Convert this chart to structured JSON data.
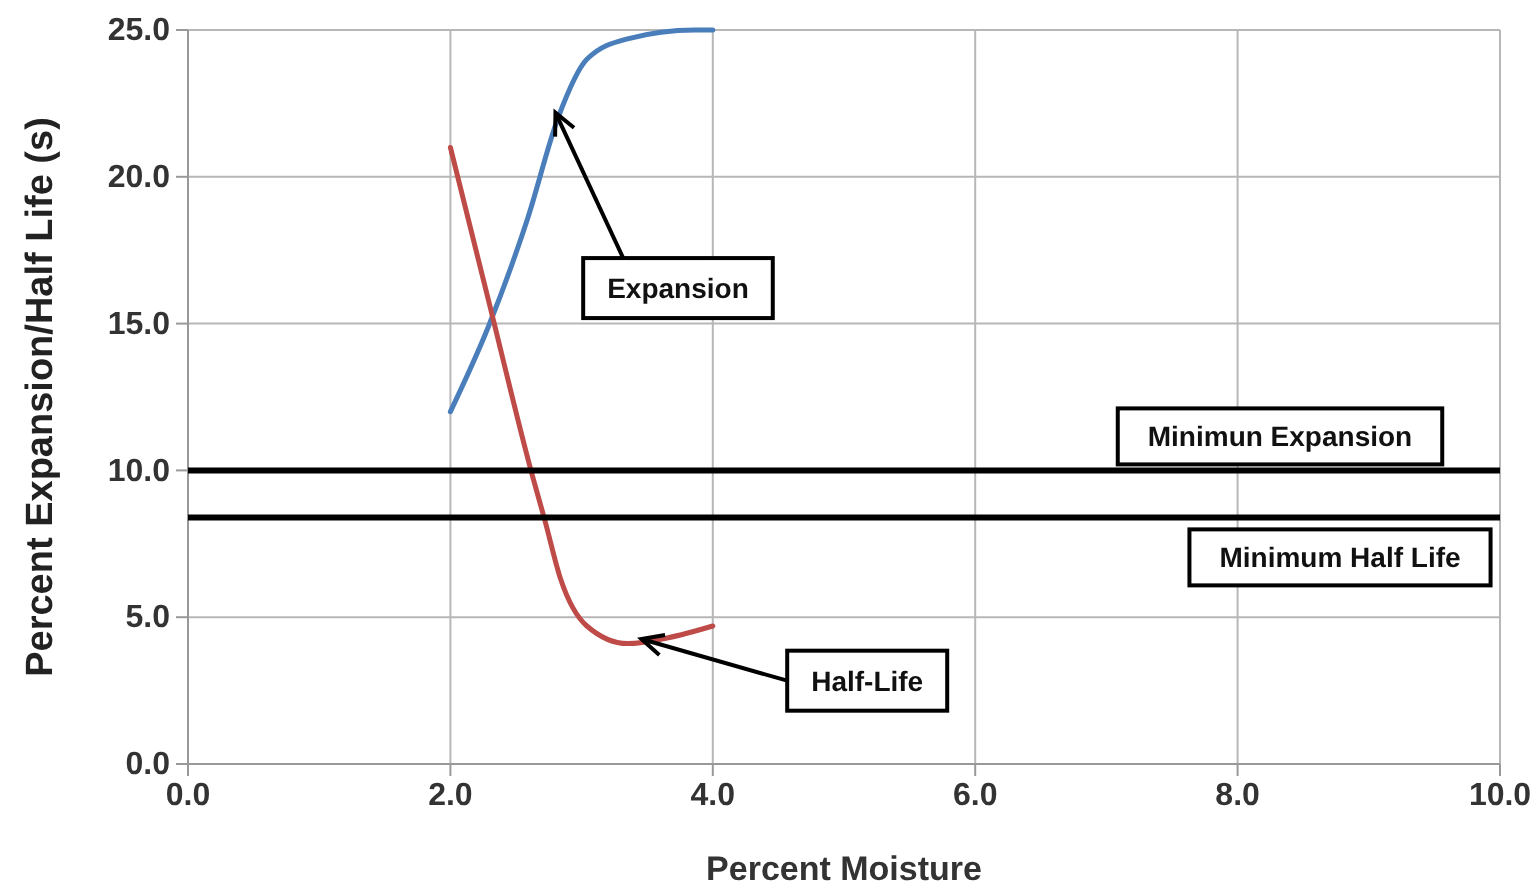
{
  "chart_data": {
    "type": "line",
    "xlabel": "Percent Moisture",
    "ylabel": "Percent Expansion/Half Life (s)",
    "xlim": [
      0,
      10
    ],
    "xticks": [
      {
        "value": 0,
        "label": "0.0"
      },
      {
        "value": 2,
        "label": "2.0"
      },
      {
        "value": 4,
        "label": "4.0"
      },
      {
        "value": 6,
        "label": "6.0"
      },
      {
        "value": 8,
        "label": "8.0"
      },
      {
        "value": 10,
        "label": "10.0"
      }
    ],
    "ylim": [
      0,
      25
    ],
    "yticks": [
      {
        "value": 0,
        "label": "0.0"
      },
      {
        "value": 5,
        "label": "5.0"
      },
      {
        "value": 10,
        "label": "10.0"
      },
      {
        "value": 15,
        "label": "15.0"
      },
      {
        "value": 20,
        "label": "20.0"
      },
      {
        "value": 25,
        "label": "25.0"
      }
    ],
    "grid": true,
    "marker": "none",
    "line_style": "solid",
    "series": [
      {
        "color": "#4a7ebb",
        "x": [
          2.0,
          2.29,
          2.59,
          2.82,
          3.04,
          3.35,
          3.86,
          4.0
        ],
        "values": [
          12.0,
          14.9,
          18.6,
          22.0,
          24.0,
          24.7,
          25.0,
          25.0
        ]
      },
      {
        "color": "#be4b48",
        "x": [
          2.0,
          2.29,
          2.62,
          2.72,
          2.84,
          3.04,
          3.35,
          3.66,
          4.0
        ],
        "values": [
          21.0,
          15.8,
          9.9,
          8.3,
          6.3,
          4.7,
          4.1,
          4.3,
          4.7
        ]
      }
    ],
    "ref_lines": [
      {
        "axis": "y",
        "value": 10,
        "label": "Minimun Expansion",
        "color": "#000000"
      },
      {
        "axis": "y",
        "value": 8.4,
        "label": "Minimum Half Life",
        "color": "#000000"
      }
    ],
    "annotations": [
      {
        "text": "Expansion",
        "x": 2.82,
        "y": 22.0
      },
      {
        "text": "Half-Life",
        "x": 3.5,
        "y": 4.2
      }
    ]
  }
}
